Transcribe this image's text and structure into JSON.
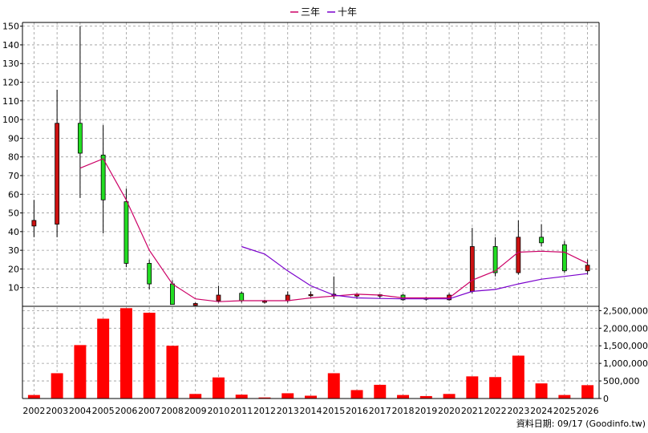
{
  "chart_data": {
    "type": "candlestick+line+bar",
    "legend": [
      {
        "label": "三年",
        "color": "#cc0066"
      },
      {
        "label": "十年",
        "color": "#7a00cc"
      }
    ],
    "years": [
      "2002",
      "2003",
      "2004",
      "2005",
      "2006",
      "2007",
      "2008",
      "2009",
      "2010",
      "2011",
      "2012",
      "2013",
      "2014",
      "2015",
      "2016",
      "2017",
      "2018",
      "2019",
      "2020",
      "2021",
      "2022",
      "2023",
      "2024",
      "2025",
      "2026"
    ],
    "price_axis": {
      "min": 0,
      "max": 152,
      "ticks": [
        10,
        20,
        30,
        40,
        50,
        60,
        70,
        80,
        90,
        100,
        110,
        120,
        130,
        140,
        150
      ]
    },
    "volume_axis": {
      "min": 0,
      "max": 2500000,
      "ticks": [
        0,
        500000,
        1000000,
        1500000,
        2000000,
        2500000
      ],
      "tick_labels": [
        "0",
        "500,000",
        "1,000,000",
        "1,500,000",
        "2,000,000",
        "2,500,000"
      ]
    },
    "candles": [
      {
        "year": "2002",
        "open": 43,
        "close": 46,
        "high": 57,
        "low": 37
      },
      {
        "year": "2003",
        "open": 44,
        "close": 98,
        "high": 116,
        "low": 37
      },
      {
        "year": "2004",
        "open": 98,
        "close": 82,
        "high": 150,
        "low": 58
      },
      {
        "year": "2005",
        "open": 81,
        "close": 57,
        "high": 97,
        "low": 39
      },
      {
        "year": "2006",
        "open": 56,
        "close": 23,
        "high": 63,
        "low": 21
      },
      {
        "year": "2007",
        "open": 23,
        "close": 12,
        "high": 25,
        "low": 9
      },
      {
        "year": "2008",
        "open": 12,
        "close": 1,
        "high": 14,
        "low": 1
      },
      {
        "year": "2009",
        "open": 0.5,
        "close": 1.5,
        "high": 2,
        "low": 0.3
      },
      {
        "year": "2010",
        "open": 3,
        "close": 6,
        "high": 11,
        "low": 2
      },
      {
        "year": "2011",
        "open": 7,
        "close": 3,
        "high": 8,
        "low": 2
      },
      {
        "year": "2012",
        "open": 2.5,
        "close": 2.8,
        "high": 3.5,
        "low": 1.5
      },
      {
        "year": "2013",
        "open": 3,
        "close": 6,
        "high": 8,
        "low": 2
      },
      {
        "year": "2014",
        "open": 6,
        "close": 6.3,
        "high": 8,
        "low": 5
      },
      {
        "year": "2015",
        "open": 6,
        "close": 6.5,
        "high": 16,
        "low": 4
      },
      {
        "year": "2016",
        "open": 5.5,
        "close": 6.5,
        "high": 7,
        "low": 4
      },
      {
        "year": "2017",
        "open": 5.5,
        "close": 6.2,
        "high": 6.5,
        "low": 4.5
      },
      {
        "year": "2018",
        "open": 6,
        "close": 3.5,
        "high": 6.5,
        "low": 3
      },
      {
        "year": "2019",
        "open": 4,
        "close": 4.4,
        "high": 5,
        "low": 3
      },
      {
        "year": "2020",
        "open": 3.5,
        "close": 6,
        "high": 7,
        "low": 3
      },
      {
        "year": "2021",
        "open": 8,
        "close": 32,
        "high": 42,
        "low": 7
      },
      {
        "year": "2022",
        "open": 32,
        "close": 18,
        "high": 37,
        "low": 16
      },
      {
        "year": "2023",
        "open": 18,
        "close": 37,
        "high": 46,
        "low": 17
      },
      {
        "year": "2024",
        "open": 37,
        "close": 34,
        "high": 44,
        "low": 32
      },
      {
        "year": "2025",
        "open": 33,
        "close": 19,
        "high": 35,
        "low": 18
      },
      {
        "year": "2026",
        "open": 19,
        "close": 22,
        "high": 25,
        "low": 17
      }
    ],
    "series": [
      {
        "name": "三年",
        "color": "#cc0066",
        "values": [
          null,
          null,
          74,
          79,
          57,
          30,
          12,
          4,
          2.5,
          3,
          3,
          3,
          4.5,
          5.5,
          6.5,
          6,
          4.5,
          4.5,
          4.5,
          14,
          19,
          29,
          29.5,
          29,
          23
        ]
      },
      {
        "name": "十年",
        "color": "#7a00cc",
        "values": [
          null,
          null,
          null,
          null,
          null,
          null,
          null,
          null,
          null,
          32,
          28,
          19,
          11,
          6,
          4.5,
          4.2,
          4,
          4,
          4,
          8,
          9,
          12,
          14.5,
          16,
          17.5
        ]
      }
    ],
    "volume": [
      100000,
      720000,
      1520000,
      2270000,
      2570000,
      2440000,
      1500000,
      130000,
      600000,
      110000,
      30000,
      150000,
      80000,
      720000,
      240000,
      390000,
      100000,
      70000,
      130000,
      630000,
      610000,
      1220000,
      430000,
      100000,
      380000
    ],
    "source_label": "資料日期: 09/17  (Goodinfo.tw)"
  }
}
